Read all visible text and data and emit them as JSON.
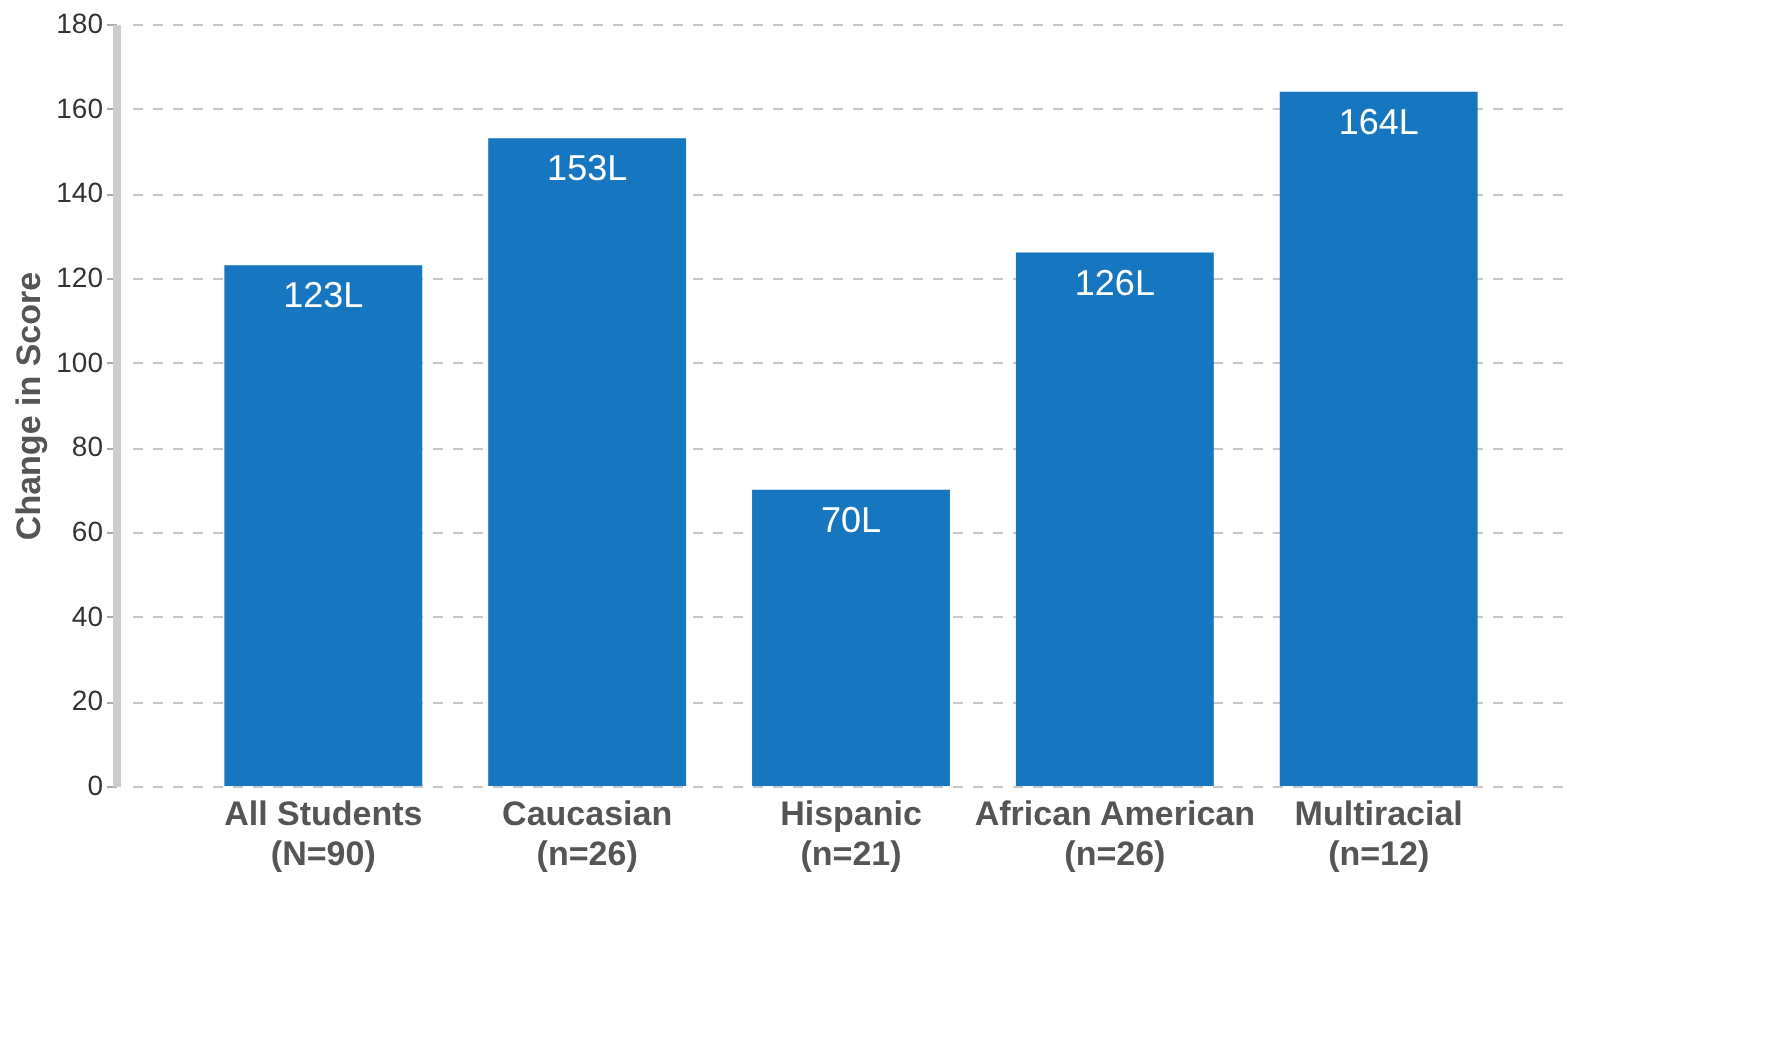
{
  "chart_data": {
    "type": "bar",
    "ylabel": "Change in Score",
    "categories": [
      "All Students\n(N=90)",
      "Caucasian\n(n=26)",
      "Hispanic\n(n=21)",
      "African American\n(n=26)",
      "Multiracial\n(n=12)"
    ],
    "values": [
      123,
      153,
      70,
      126,
      164
    ],
    "value_labels": [
      "123L",
      "153L",
      "70L",
      "126L",
      "164L"
    ],
    "color": "#1676c0",
    "ylim": [
      0,
      180
    ],
    "yticks": [
      0,
      20,
      40,
      60,
      80,
      100,
      120,
      140,
      160,
      180
    ],
    "grid": "y"
  }
}
